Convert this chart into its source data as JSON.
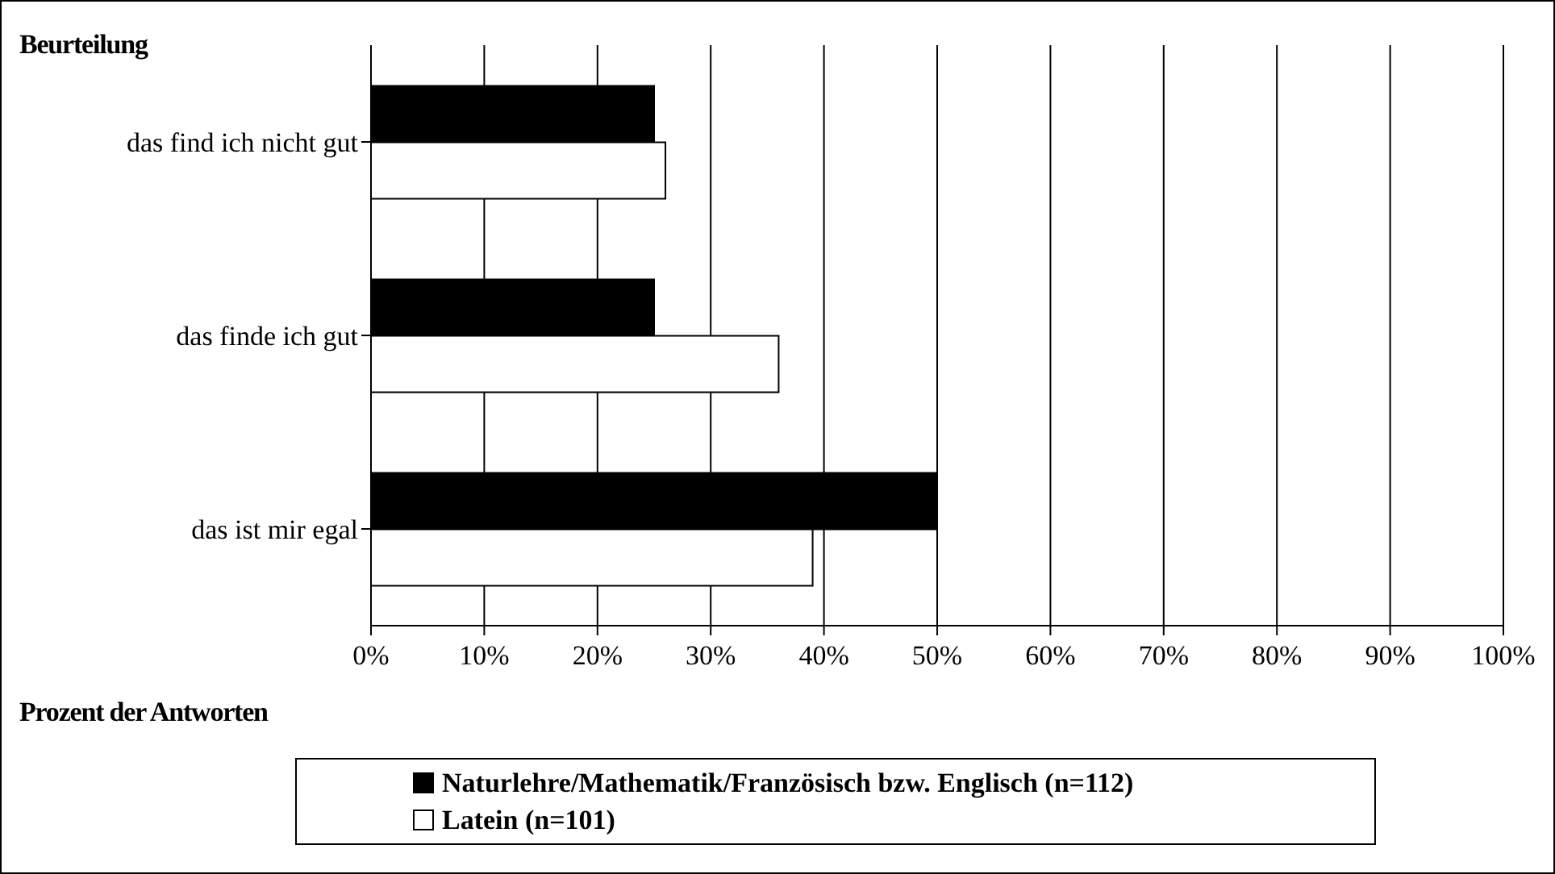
{
  "chart_data": {
    "type": "bar",
    "orientation": "horizontal",
    "ylabel": "Beurteilung",
    "xlabel": "Prozent der Antworten",
    "categories": [
      "das find ich nicht gut",
      "das finde ich gut",
      "das ist mir egal"
    ],
    "series": [
      {
        "name": "Naturlehre/Mathematik/Französisch bzw. Englisch (n=112)",
        "color": "#000000",
        "values": [
          25,
          25,
          50
        ]
      },
      {
        "name": "Latein (n=101)",
        "color": "#ffffff",
        "values": [
          26,
          36,
          39
        ]
      }
    ],
    "xlim": [
      0,
      100
    ],
    "xticks": [
      {
        "value": 0,
        "label": "0%"
      },
      {
        "value": 10,
        "label": "10%"
      },
      {
        "value": 20,
        "label": "20%"
      },
      {
        "value": 30,
        "label": "30%"
      },
      {
        "value": 40,
        "label": "40%"
      },
      {
        "value": 50,
        "label": "50%"
      },
      {
        "value": 60,
        "label": "60%"
      },
      {
        "value": 70,
        "label": "70%"
      },
      {
        "value": 80,
        "label": "80%"
      },
      {
        "value": 90,
        "label": "90%"
      },
      {
        "value": 100,
        "label": "100%"
      }
    ],
    "grid": "x",
    "legend": "bottom"
  }
}
